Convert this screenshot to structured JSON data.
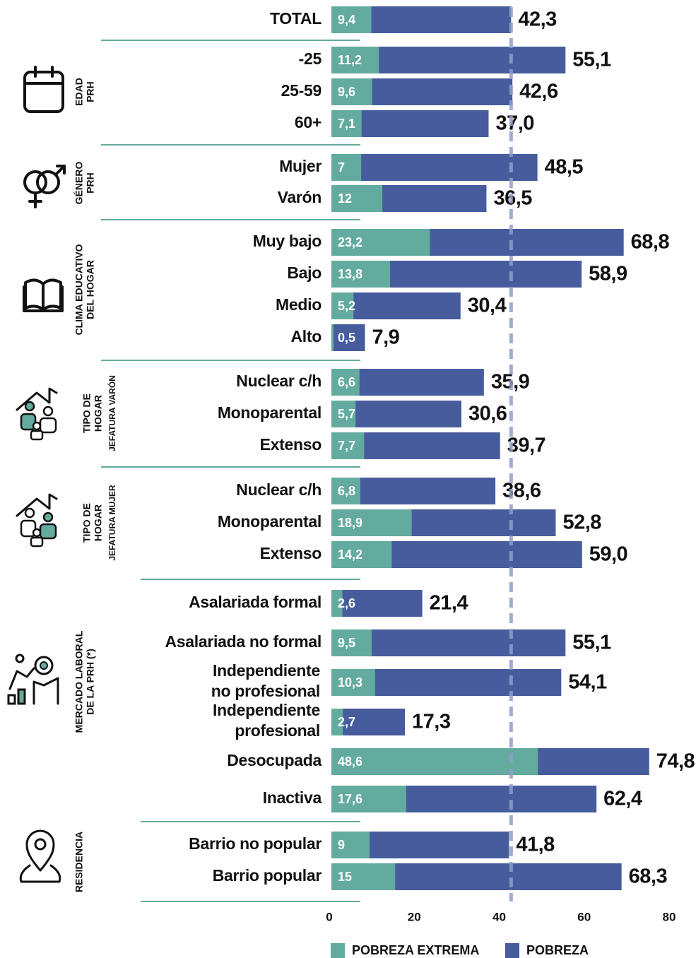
{
  "chart_data": {
    "type": "bar",
    "categories": [
      "TOTAL",
      "-25",
      "25-59",
      "60+",
      "Mujer",
      "Varón",
      "Muy bajo",
      "Bajo",
      "Medio",
      "Alto",
      "Nuclear c/h",
      "Monoparental",
      "Extenso",
      "Nuclear c/h",
      "Monoparental",
      "Extenso",
      "Asalariada formal",
      "Asalariada no formal",
      [
        "Independiente",
        "no profesional"
      ],
      [
        "Independiente",
        "profesional"
      ],
      "Desocupada",
      "Inactiva",
      "Barrio no popular",
      "Barrio popular"
    ],
    "series": [
      {
        "name": "POBREZA EXTREMA",
        "color": "#63ab9f",
        "values": [
          9.4,
          11.2,
          9.6,
          7.1,
          7,
          12,
          23.2,
          13.8,
          5.2,
          0.5,
          6.6,
          5.7,
          7.7,
          6.8,
          18.9,
          14.2,
          2.6,
          9.5,
          10.3,
          2.7,
          48.6,
          17.6,
          9,
          15
        ],
        "value_labels": [
          "9,4",
          "11,2",
          "9,6",
          "7,1",
          "7",
          "12",
          "23,2",
          "13,8",
          "5,2",
          "0,5",
          "6,6",
          "5,7",
          "7,7",
          "6,8",
          "18,9",
          "14,2",
          "2,6",
          "9,5",
          "10,3",
          "2,7",
          "48,6",
          "17,6",
          "9",
          "15"
        ]
      },
      {
        "name": "POBREZA",
        "color": "#465c9c",
        "values": [
          42.3,
          55.1,
          42.6,
          37.0,
          48.5,
          36.5,
          68.8,
          58.9,
          30.4,
          7.9,
          35.9,
          30.6,
          39.7,
          38.6,
          52.8,
          59.0,
          21.4,
          55.1,
          54.1,
          17.3,
          74.8,
          62.4,
          41.8,
          68.3
        ],
        "value_labels": [
          "42,3",
          "55,1",
          "42,6",
          "37,0",
          "48,5",
          "36,5",
          "68,8",
          "58,9",
          "30,4",
          "7,9",
          "35,9",
          "30,6",
          "39,7",
          "38,6",
          "52,8",
          "59,0",
          "21,4",
          "55,1",
          "54,1",
          "17,3",
          "74,8",
          "62,4",
          "41,8",
          "68,3"
        ]
      }
    ],
    "groups": [
      {
        "lines": [
          "EDAD",
          "PRH"
        ]
      },
      {
        "lines": [
          "GÉNERO",
          "PRH"
        ]
      },
      {
        "lines": [
          "CLIMA EDUCATIVO",
          "DEL HOGAR"
        ]
      },
      {
        "lines": [
          "TIPO DE",
          "HOGAR"
        ],
        "sub": "JEFATURA VARÓN"
      },
      {
        "lines": [
          "TIPO DE",
          "HOGAR"
        ],
        "sub": "JEFATURA MUJER"
      },
      {
        "lines": [
          "MERCADO LABORAL",
          "DE LA PRH (*)"
        ]
      },
      {
        "lines": [
          "RESIDENCIA"
        ]
      }
    ],
    "xlim": [
      0,
      80
    ],
    "xticks": [
      0,
      20,
      40,
      60,
      80
    ]
  }
}
